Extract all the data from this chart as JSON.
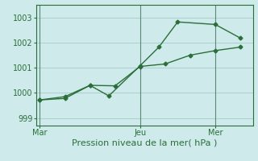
{
  "xlabel": "Pression niveau de la mer( hPa )",
  "ylim": [
    998.7,
    1003.5
  ],
  "yticks": [
    999,
    1000,
    1001,
    1002,
    1003
  ],
  "background_color": "#ceeaea",
  "grid_color": "#aacfcf",
  "line_color": "#2a6e3a",
  "x_tick_labels": [
    "Mar",
    "Jeu",
    "Mer"
  ],
  "x_tick_positions": [
    0,
    8,
    14
  ],
  "x_vline_positions": [
    0,
    8,
    14
  ],
  "xlim": [
    -0.3,
    17.0
  ],
  "line1_x": [
    0,
    2,
    4,
    6,
    8,
    10,
    12,
    14,
    16
  ],
  "line1_y": [
    999.72,
    999.85,
    1000.3,
    1000.28,
    1001.05,
    1001.15,
    1001.5,
    1001.68,
    1001.82
  ],
  "line2_x": [
    0,
    2,
    4,
    5.5,
    8,
    9.5,
    11,
    14,
    16
  ],
  "line2_y": [
    999.72,
    999.78,
    1000.3,
    999.88,
    1001.08,
    1001.82,
    1002.82,
    1002.72,
    1002.18
  ],
  "marker": "D",
  "marker_size": 2.5,
  "linewidth": 1.0,
  "font_color": "#2a6e3a",
  "font_size_ticks": 7,
  "font_size_label": 8,
  "spine_color": "#2a6e3a"
}
